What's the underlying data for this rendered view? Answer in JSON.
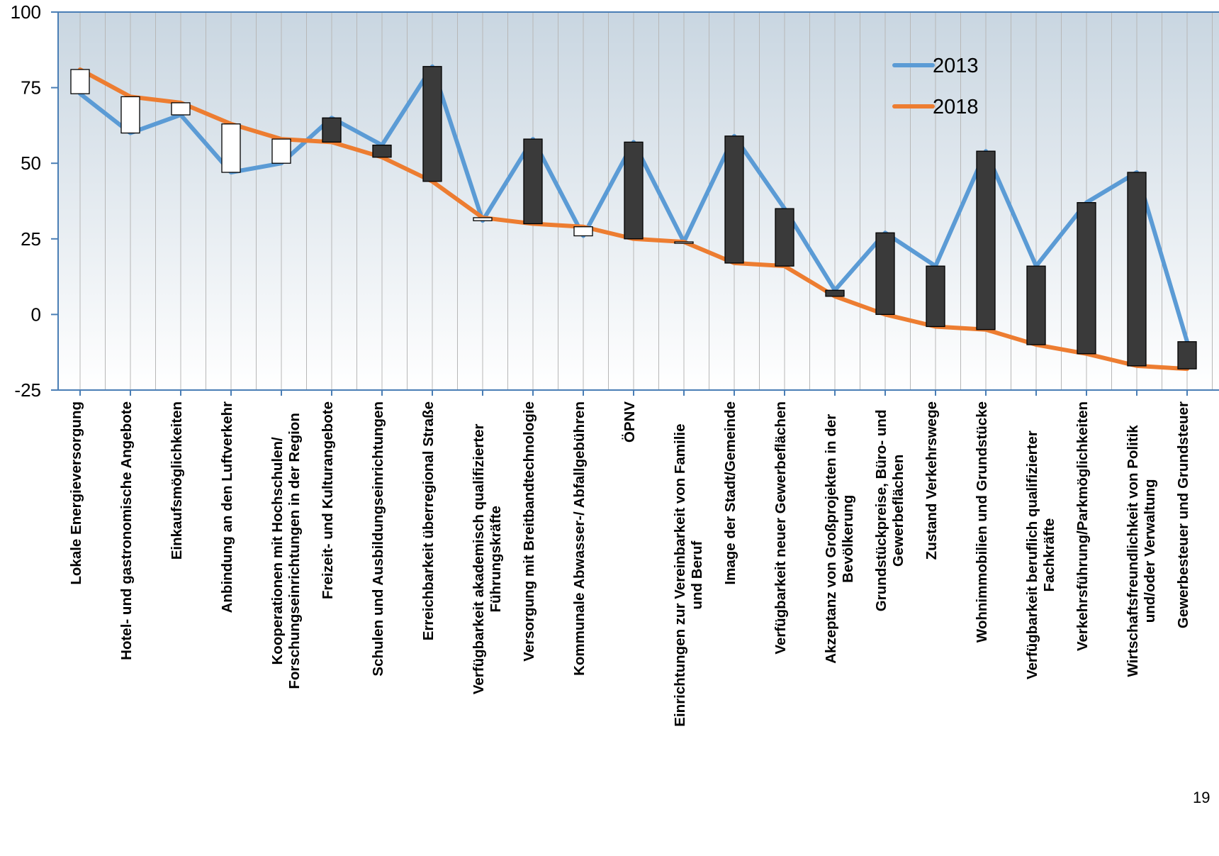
{
  "page_number": "19",
  "chart_data": {
    "type": "line",
    "ylim": [
      -25,
      100
    ],
    "yticks": [
      100,
      75,
      50,
      25,
      0,
      -25
    ],
    "grid": "vertical",
    "legend_position": "top-right",
    "categories": [
      [
        "Lokale Energieversorgung"
      ],
      [
        "Hotel- und gastronomische Angebote"
      ],
      [
        "Einkaufsmöglichkeiten"
      ],
      [
        "Anbindung an den Luftverkehr"
      ],
      [
        "Kooperationen mit Hochschulen/",
        "Forschungseinrichtungen in der Region"
      ],
      [
        "Freizeit- und Kulturangebote"
      ],
      [
        "Schulen und Ausbildungseinrichtungen"
      ],
      [
        "Erreichbarkeit überregional Straße"
      ],
      [
        "Verfügbarkeit akademisch qualifizierter",
        "Führungskräfte"
      ],
      [
        "Versorgung mit Breitbandtechnologie"
      ],
      [
        "Kommunale Abwasser-/ Abfallgebühren"
      ],
      [
        "ÖPNV"
      ],
      [
        "Einrichtungen zur Vereinbarkeit von Familie",
        "und Beruf"
      ],
      [
        "Image der Stadt/Gemeinde"
      ],
      [
        "Verfügbarkeit neuer Gewerbeflächen"
      ],
      [
        "Akzeptanz von Großprojekten in der",
        "Bevölkerung"
      ],
      [
        "Grundstückpreise, Büro- und",
        "Gewerbeflächen"
      ],
      [
        "Zustand Verkehrswege"
      ],
      [
        "Wohnimmobilien und Grundstücke"
      ],
      [
        "Verfügbarkeit beruflich qualifizierter",
        "Fachkräfte"
      ],
      [
        "Verkehrsführung/Parkmöglichkeiten"
      ],
      [
        "Wirtschaftsfreundlichkeit von Politik",
        "und/oder Verwaltung"
      ],
      [
        "Gewerbesteuer und Grundsteuer"
      ]
    ],
    "series": [
      {
        "name": "2013",
        "color": "#5B9BD5",
        "values": [
          73,
          60,
          66,
          47,
          50,
          65,
          56,
          82,
          31,
          58,
          26,
          57,
          24,
          59,
          35,
          8,
          27,
          16,
          54,
          16,
          37,
          47,
          -9
        ]
      },
      {
        "name": "2018",
        "color": "#ED7D31",
        "values": [
          81,
          72,
          70,
          63,
          58,
          57,
          52,
          44,
          32,
          30,
          29,
          25,
          24,
          17,
          16,
          6,
          0,
          -4,
          -5,
          -10,
          -13,
          -17,
          -18
        ]
      }
    ]
  }
}
